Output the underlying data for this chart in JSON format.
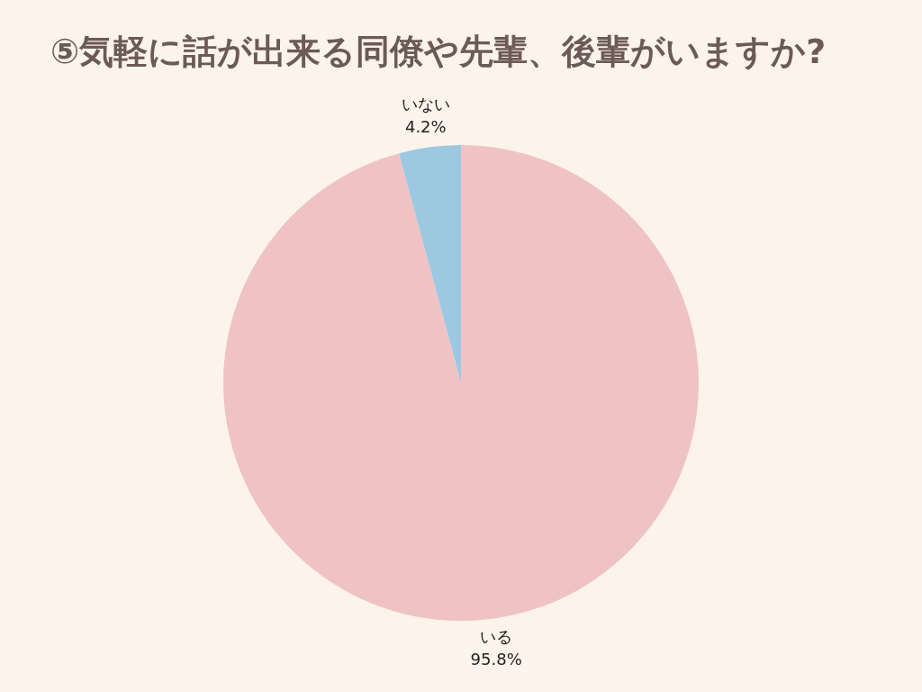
{
  "chart_data": {
    "type": "pie",
    "title": "⑤気軽に話が出来る同僚や先輩、後輩がいますか?",
    "categories": [
      "いる",
      "いない"
    ],
    "values": [
      95.8,
      4.2
    ],
    "value_labels": [
      "95.8%",
      "4.2%"
    ],
    "colors": [
      "#efc3c4",
      "#9dc8e2"
    ],
    "legend": false
  }
}
